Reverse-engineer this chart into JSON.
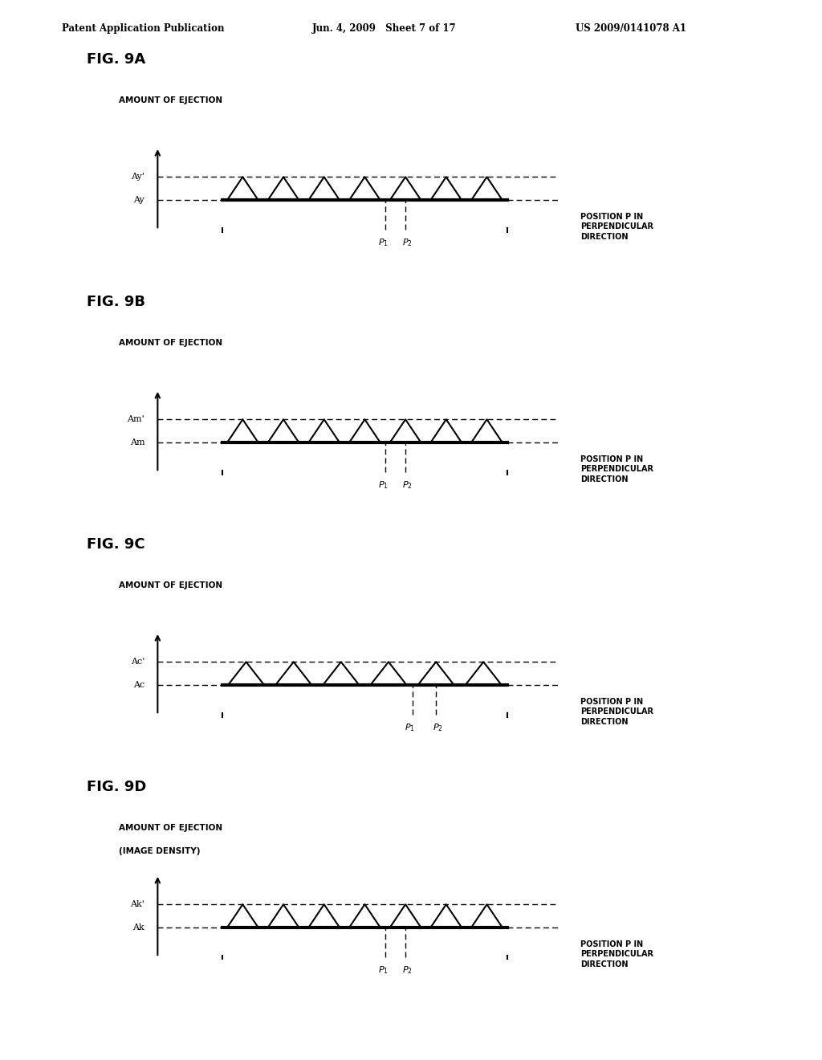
{
  "bg_color": "#ffffff",
  "header_left": "Patent Application Publication",
  "header_center": "Jun. 4, 2009   Sheet 7 of 17",
  "header_right": "US 2009/0141078 A1",
  "panels": [
    {
      "fig_label": "FIG. 9A",
      "ylabel": "AMOUNT OF EJECTION",
      "ylabel2": "",
      "level_label": "Ay'",
      "base_label": "Ay",
      "num_peaks": 7,
      "p1_label": "P1",
      "p2_label": "P2"
    },
    {
      "fig_label": "FIG. 9B",
      "ylabel": "AMOUNT OF EJECTION",
      "ylabel2": "",
      "level_label": "Am'",
      "base_label": "Am",
      "num_peaks": 7,
      "p1_label": "P1",
      "p2_label": "P2"
    },
    {
      "fig_label": "FIG. 9C",
      "ylabel": "AMOUNT OF EJECTION",
      "ylabel2": "",
      "level_label": "Ac'",
      "base_label": "Ac",
      "num_peaks": 6,
      "p1_label": "P1",
      "p2_label": "P2"
    },
    {
      "fig_label": "FIG. 9D",
      "ylabel": "AMOUNT OF EJECTION",
      "ylabel2": "(IMAGE DENSITY)",
      "level_label": "Ak'",
      "base_label": "Ak",
      "num_peaks": 7,
      "p1_label": "P1",
      "p2_label": "P2"
    }
  ],
  "xlabel_line1": "POSITION P IN",
  "xlabel_line2": "PERPENDICULAR",
  "xlabel_line3": "DIRECTION"
}
